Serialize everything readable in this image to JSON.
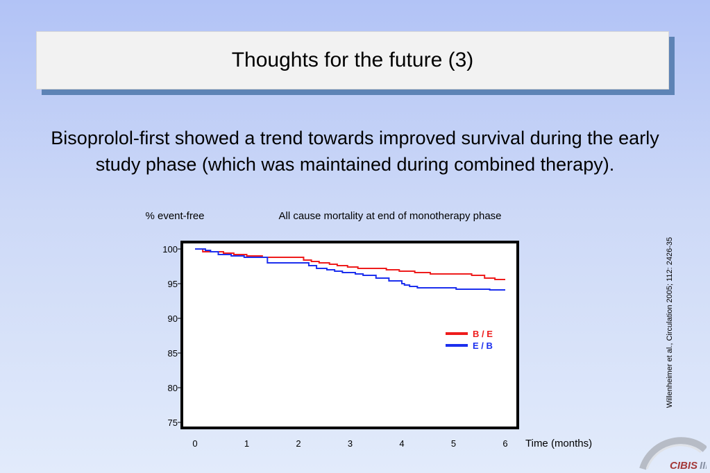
{
  "slide": {
    "title": "Thoughts for the future (3)",
    "body": "Bisoprolol-first showed a trend towards improved survival during the early study phase (which was maintained during combined therapy).",
    "citation": "Willenheimer et al., Circulation 2005; 112: 2426-35",
    "logo_text": "CIBIS III"
  },
  "chart_data": {
    "type": "line",
    "title": "All cause mortality at end of monotherapy phase",
    "ylabel": "% event-free",
    "xlabel": "Time (months)",
    "xlim": [
      0,
      6
    ],
    "ylim": [
      75,
      100
    ],
    "xticks": [
      0,
      1,
      2,
      3,
      4,
      5,
      6
    ],
    "yticks": [
      75,
      80,
      85,
      90,
      95,
      100
    ],
    "grid": false,
    "legend_position": "right",
    "series": [
      {
        "name": "B / E",
        "color": "#ee1c1c",
        "step": true,
        "x": [
          0,
          0.15,
          0.55,
          0.75,
          1.0,
          1.3,
          2.1,
          2.25,
          2.4,
          2.6,
          2.75,
          2.95,
          3.15,
          3.45,
          3.7,
          3.95,
          4.25,
          4.55,
          5.1,
          5.35,
          5.6,
          5.8,
          6.0
        ],
        "y": [
          100,
          99.6,
          99.4,
          99.2,
          99.0,
          98.8,
          98.4,
          98.2,
          98.0,
          97.8,
          97.6,
          97.4,
          97.2,
          97.2,
          97.0,
          96.8,
          96.6,
          96.4,
          96.4,
          96.2,
          95.8,
          95.6,
          95.6
        ]
      },
      {
        "name": "E / B",
        "color": "#1c2fee",
        "step": true,
        "x": [
          0,
          0.2,
          0.3,
          0.45,
          0.7,
          0.95,
          1.4,
          2.2,
          2.35,
          2.55,
          2.7,
          2.85,
          3.1,
          3.25,
          3.5,
          3.75,
          4.0,
          4.05,
          4.15,
          4.3,
          4.55,
          4.9,
          5.05,
          5.4,
          5.7,
          6.0
        ],
        "y": [
          100,
          99.8,
          99.6,
          99.2,
          99.0,
          98.8,
          98.0,
          97.6,
          97.2,
          97.0,
          96.8,
          96.6,
          96.4,
          96.2,
          95.8,
          95.4,
          95.0,
          94.8,
          94.6,
          94.4,
          94.4,
          94.4,
          94.2,
          94.2,
          94.1,
          94.1
        ]
      }
    ]
  }
}
